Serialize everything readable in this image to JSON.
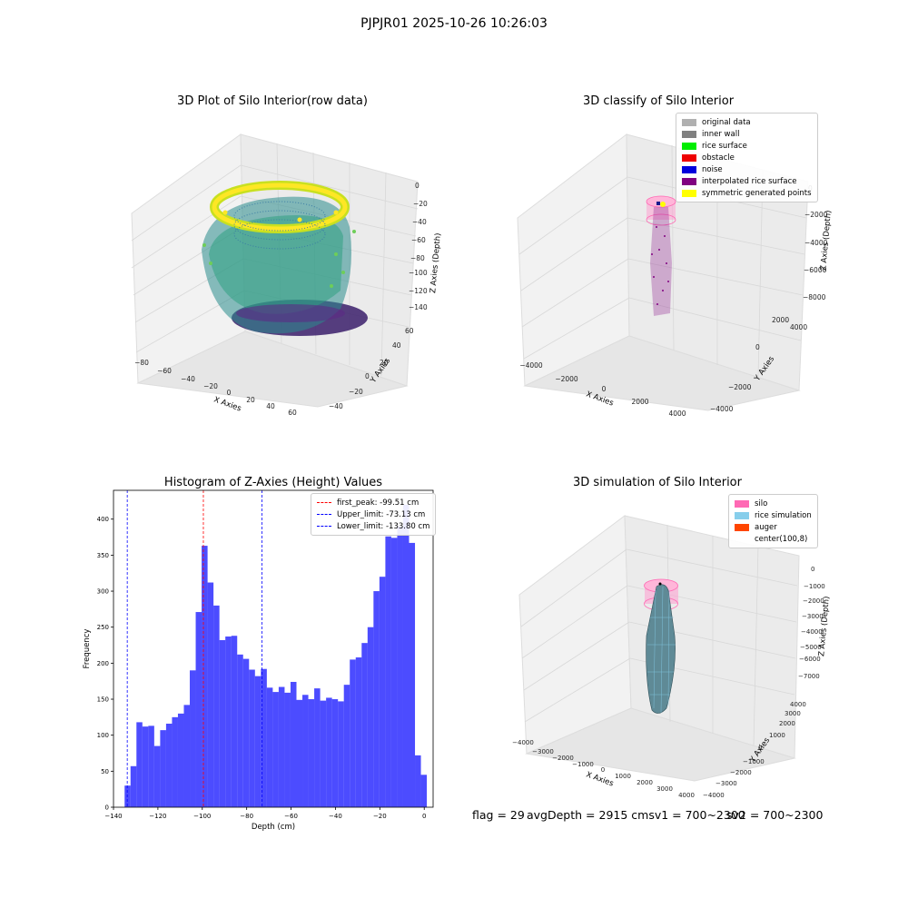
{
  "suptitle": "PJPJR01 2025-10-26 10:26:03",
  "panels": {
    "raw": {
      "title": "3D Plot of Silo Interior(row data)",
      "xlabel": "X Axies",
      "ylabel": "Y Axies",
      "zlabel": "Z Axies (Depth)",
      "xticks": [
        "−80",
        "−60",
        "−40",
        "−20",
        "0",
        "20",
        "40",
        "60"
      ],
      "yticks": [
        "−40",
        "−20",
        "0",
        "20",
        "40",
        "60"
      ],
      "zticks": [
        "0",
        "−20",
        "−40",
        "−60",
        "−80",
        "−100",
        "−120",
        "−140"
      ]
    },
    "classify": {
      "title": "3D classify of Silo Interior",
      "xlabel": "X Axies",
      "ylabel": "Y Axies",
      "zlabel": "Z Axies (Depth)",
      "xticks": [
        "−4000",
        "−2000",
        "0",
        "2000",
        "4000"
      ],
      "yticks": [
        "−4000",
        "−2000",
        "0",
        "2000",
        "4000"
      ],
      "zticks": [
        "0",
        "−2000",
        "−4000",
        "−6000",
        "−8000"
      ],
      "legend": [
        {
          "label": "original data",
          "color": "#b0b0b0"
        },
        {
          "label": "inner wall",
          "color": "#808080"
        },
        {
          "label": "rice surface",
          "color": "#00ee00"
        },
        {
          "label": "obstacle",
          "color": "#ee0000"
        },
        {
          "label": "noise",
          "color": "#0000dd"
        },
        {
          "label": "interpolated rice surface",
          "color": "#800080"
        },
        {
          "label": "symmetric generated points",
          "color": "#ffff00"
        }
      ]
    },
    "simulation": {
      "title": "3D simulation of Silo Interior",
      "xlabel": "X Axies",
      "ylabel": "Y Axies",
      "zlabel": "Z Axies (Depth)",
      "xticks": [
        "−4000",
        "−3000",
        "−2000",
        "−1000",
        "0",
        "1000",
        "2000",
        "3000",
        "4000"
      ],
      "yticks": [
        "−4000",
        "−3000",
        "−2000",
        "−1000",
        "0",
        "1000",
        "2000",
        "3000",
        "4000"
      ],
      "zticks": [
        "0",
        "−1000",
        "−2000",
        "−3000",
        "−4000",
        "−5000",
        "−6000",
        "−7000"
      ],
      "legend": [
        {
          "label": "silo",
          "color": "#ff69b4"
        },
        {
          "label": "rice simulation",
          "color": "#87ceeb"
        },
        {
          "label": "auger",
          "color": "#ff4500"
        },
        {
          "label": "center(100,8)",
          "color": ""
        }
      ]
    }
  },
  "footer": {
    "flag": "flag = 29",
    "avg": "avgDepth = 2915 cmsv1 = 700~2300",
    "sv2": "sv2 = 700~2300"
  },
  "chart_data": [
    {
      "type": "bar",
      "title": "Histogram of Z-Axies (Height) Values",
      "xlabel": "Depth (cm)",
      "ylabel": "Frequency",
      "xlim": [
        -140,
        4
      ],
      "ylim": [
        0,
        440
      ],
      "xticks": [
        -140,
        -120,
        -100,
        -80,
        -60,
        -40,
        -20,
        0
      ],
      "yticks": [
        0,
        50,
        100,
        150,
        200,
        250,
        300,
        350,
        400
      ],
      "bin_start": -135,
      "bin_width": 2.67,
      "values": [
        30,
        57,
        118,
        112,
        113,
        85,
        107,
        116,
        125,
        130,
        142,
        190,
        271,
        363,
        312,
        280,
        232,
        237,
        238,
        212,
        206,
        191,
        182,
        192,
        166,
        160,
        167,
        159,
        174,
        149,
        156,
        150,
        165,
        148,
        152,
        150,
        147,
        170,
        205,
        208,
        228,
        250,
        300,
        320,
        376,
        374,
        390,
        420,
        367,
        72,
        45
      ],
      "color": "#0000ff",
      "alpha": 0.7,
      "vlines": [
        {
          "x": -99.51,
          "label": "first_peak: -99.51 cm",
          "color": "#ff0000"
        },
        {
          "x": -73.13,
          "label": "Upper_limit: -73.13 cm",
          "color": "#0000ff"
        },
        {
          "x": -133.8,
          "label": "Lower_limit: -133.80 cm",
          "color": "#0000ff"
        }
      ],
      "legend_position": "upper right"
    }
  ]
}
